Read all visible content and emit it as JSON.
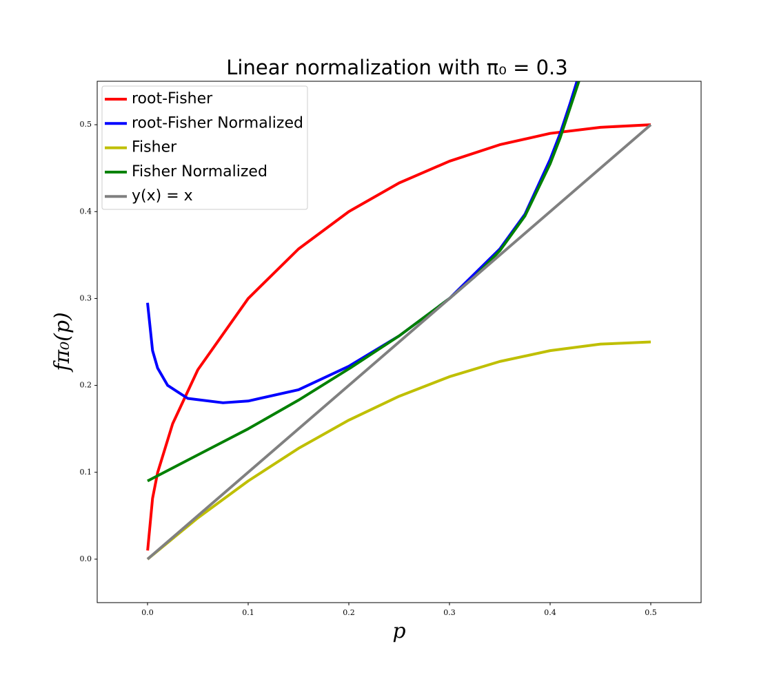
{
  "chart_data": {
    "type": "line",
    "title": "Linear normalization with π₀ = 0.3",
    "xlabel": "p",
    "ylabel": "fπ₀(p)",
    "xlim": [
      -0.05,
      0.55
    ],
    "ylim": [
      -0.05,
      0.55
    ],
    "xticks": [
      {
        "value": 0,
        "label": "0.0"
      },
      0.1,
      0.2,
      0.3,
      0.4,
      0.5
    ],
    "yticks": [
      {
        "value": 0,
        "label": "0.0"
      },
      0.1,
      0.2,
      0.3,
      0.4,
      0.5
    ],
    "legend": "upper left",
    "series": [
      {
        "name": "root-Fisher",
        "color": "#ff0000",
        "x": [
          0.0001,
          0.005,
          0.01,
          0.025,
          0.05,
          0.1,
          0.15,
          0.2,
          0.25,
          0.3,
          0.35,
          0.4,
          0.45,
          0.5
        ],
        "values": [
          0.01,
          0.07,
          0.0995,
          0.156,
          0.218,
          0.3,
          0.357,
          0.4,
          0.433,
          0.458,
          0.477,
          0.49,
          0.497,
          0.5
        ]
      },
      {
        "name": "root-Fisher Normalized",
        "color": "#0000ff",
        "x": [
          0,
          0.005,
          0.01,
          0.02,
          0.04,
          0.075,
          0.1,
          0.15,
          0.2,
          0.25,
          0.3,
          0.35,
          0.375,
          0.4,
          0.41,
          0.42,
          0.428
        ],
        "values": [
          0.295,
          0.24,
          0.22,
          0.2,
          0.185,
          0.18,
          0.182,
          0.195,
          0.222,
          0.257,
          0.3,
          0.357,
          0.397,
          0.46,
          0.49,
          0.525,
          0.555
        ]
      },
      {
        "name": "Fisher",
        "color": "#bfbf00",
        "x": [
          0,
          0.05,
          0.1,
          0.15,
          0.2,
          0.25,
          0.3,
          0.35,
          0.4,
          0.45,
          0.5
        ],
        "values": [
          0,
          0.0475,
          0.09,
          0.1275,
          0.16,
          0.1875,
          0.21,
          0.2275,
          0.24,
          0.2475,
          0.25
        ]
      },
      {
        "name": "Fisher Normalized",
        "color": "#008000",
        "x": [
          0,
          0.05,
          0.1,
          0.15,
          0.2,
          0.25,
          0.3,
          0.325,
          0.35,
          0.375,
          0.4,
          0.41,
          0.42,
          0.43
        ],
        "values": [
          0.09,
          0.12,
          0.15,
          0.183,
          0.219,
          0.257,
          0.3,
          0.325,
          0.355,
          0.395,
          0.455,
          0.485,
          0.52,
          0.555
        ]
      },
      {
        "name": "y(x) = x",
        "color": "#808080",
        "x": [
          0,
          0.5
        ],
        "values": [
          0,
          0.5
        ]
      }
    ]
  }
}
